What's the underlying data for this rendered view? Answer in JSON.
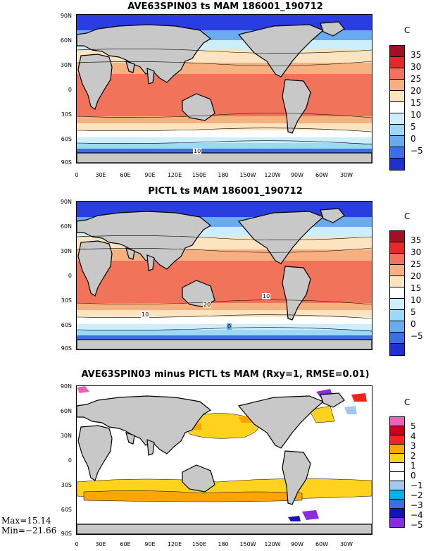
{
  "panels": [
    {
      "title": "AVE63SPIN03 ts MAM 186001_190712",
      "unit": "C",
      "colorbar_labels": [
        "35",
        "30",
        "25",
        "20",
        "15",
        "10",
        "5",
        "0",
        "−5"
      ],
      "colorbar_colors": [
        "#a50f26",
        "#e32a2a",
        "#f1735a",
        "#f7b07f",
        "#fde4c0",
        "#ffffff",
        "#cdeefc",
        "#9cd9f7",
        "#6aabf0",
        "#3b6fe8",
        "#1f2fd0"
      ],
      "contour_labels": [
        "10"
      ]
    },
    {
      "title": "PICTL ts MAM 186001_190712",
      "unit": "C",
      "colorbar_labels": [
        "35",
        "30",
        "25",
        "20",
        "15",
        "10",
        "5",
        "0",
        "−5"
      ],
      "colorbar_colors": [
        "#a50f26",
        "#e32a2a",
        "#f1735a",
        "#f7b07f",
        "#fde4c0",
        "#ffffff",
        "#cdeefc",
        "#9cd9f7",
        "#6aabf0",
        "#3b6fe8",
        "#1f2fd0"
      ],
      "contour_labels": [
        "10",
        "20",
        "10",
        "0"
      ]
    },
    {
      "title": "AVE63SPIN03 minus PICTL ts MAM (Rxy=1, RMSE=0.01)",
      "unit": "C",
      "colorbar_labels": [
        "5",
        "4",
        "3",
        "2",
        "1",
        "0",
        "−1",
        "−2",
        "−3",
        "−4",
        "−5"
      ],
      "colorbar_colors": [
        "#f060b8",
        "#c8001e",
        "#ff2020",
        "#ffa500",
        "#ffd21e",
        "#ffffff",
        "#ffffff",
        "#a0c8f0",
        "#00b0e8",
        "#3b6fe8",
        "#1414b4",
        "#8a2be2"
      ],
      "contour_labels": []
    }
  ],
  "lat_labels": [
    "90N",
    "60N",
    "30N",
    "0",
    "30S",
    "60S",
    "90S"
  ],
  "lon_labels": [
    "0",
    "30E",
    "60E",
    "90E",
    "120E",
    "150E",
    "180",
    "150W",
    "120W",
    "90W",
    "60W",
    "30W"
  ],
  "stats": {
    "max": "Max=15.14",
    "min": "Min=−21.66"
  }
}
